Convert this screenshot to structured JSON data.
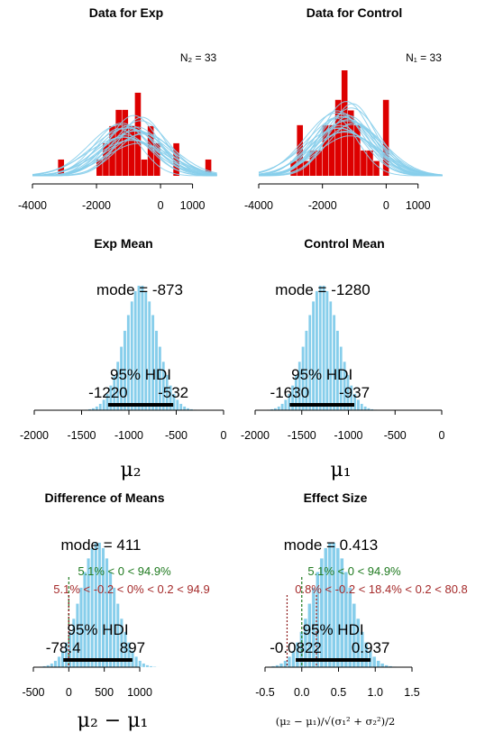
{
  "colors": {
    "bar_red": "#dd0000",
    "hist_blue": "#87ceeb",
    "green_text": "#1f7a1f",
    "red_text": "#a52a2a"
  },
  "chart_data": [
    {
      "id": "exp_data",
      "type": "bar",
      "title": "Data for Exp",
      "note": "N₂ = 33",
      "xlim": [
        -4000,
        1800
      ],
      "ylim": [
        0,
        1
      ],
      "xticks": [
        -4000,
        -2000,
        0,
        1000
      ],
      "xtick_labels": [
        "-4000",
        "-2000",
        "0",
        "1000"
      ],
      "values": [
        {
          "x0": -3200,
          "x1": -3000,
          "h": 0.19
        },
        {
          "x0": -2000,
          "x1": -1800,
          "h": 0.19
        },
        {
          "x0": -1800,
          "x1": -1600,
          "h": 0.38
        },
        {
          "x0": -1600,
          "x1": -1400,
          "h": 0.58
        },
        {
          "x0": -1400,
          "x1": -1200,
          "h": 0.77
        },
        {
          "x0": -1200,
          "x1": -1000,
          "h": 0.77
        },
        {
          "x0": -1000,
          "x1": -800,
          "h": 0.58
        },
        {
          "x0": -800,
          "x1": -600,
          "h": 0.97
        },
        {
          "x0": -600,
          "x1": -400,
          "h": 0.19
        },
        {
          "x0": -400,
          "x1": -200,
          "h": 0.58
        },
        {
          "x0": -200,
          "x1": 0,
          "h": 0.38
        },
        {
          "x0": 400,
          "x1": 600,
          "h": 0.38
        },
        {
          "x0": 1400,
          "x1": 1600,
          "h": 0.19
        }
      ],
      "curves": {
        "mean_range": [
          -1300,
          -500
        ],
        "sd_range": [
          700,
          1100
        ],
        "count": 20
      }
    },
    {
      "id": "control_data",
      "type": "bar",
      "title": "Data for Control",
      "note": "N₁ = 33",
      "xlim": [
        -4000,
        1800
      ],
      "ylim": [
        0,
        1
      ],
      "xticks": [
        -4000,
        -2000,
        0,
        1000
      ],
      "xtick_labels": [
        "-4000",
        "-2000",
        "0",
        "1000"
      ],
      "values": [
        {
          "x0": -3000,
          "x1": -2800,
          "h": 0.14
        },
        {
          "x0": -2800,
          "x1": -2600,
          "h": 0.48
        },
        {
          "x0": -2600,
          "x1": -2400,
          "h": 0.14
        },
        {
          "x0": -2400,
          "x1": -2200,
          "h": 0.24
        },
        {
          "x0": -2200,
          "x1": -2000,
          "h": 0.24
        },
        {
          "x0": -2000,
          "x1": -1800,
          "h": 0.48
        },
        {
          "x0": -1800,
          "x1": -1600,
          "h": 0.48
        },
        {
          "x0": -1600,
          "x1": -1400,
          "h": 0.72
        },
        {
          "x0": -1400,
          "x1": -1200,
          "h": 1.0
        },
        {
          "x0": -1200,
          "x1": -1000,
          "h": 0.62
        },
        {
          "x0": -1000,
          "x1": -800,
          "h": 0.48
        },
        {
          "x0": -800,
          "x1": -600,
          "h": 0.24
        },
        {
          "x0": -600,
          "x1": -400,
          "h": 0.24
        },
        {
          "x0": -400,
          "x1": -200,
          "h": 0.14
        },
        {
          "x0": -100,
          "x1": 100,
          "h": 0.72
        }
      ],
      "curves": {
        "mean_range": [
          -1600,
          -1000
        ],
        "sd_range": [
          700,
          1100
        ],
        "count": 20
      }
    },
    {
      "id": "exp_mean",
      "type": "bar",
      "title": "Exp Mean",
      "xlim": [
        -2000,
        0
      ],
      "xticks": [
        -2000,
        -1500,
        -1000,
        -500,
        0
      ],
      "xtick_labels": [
        "-2000",
        "-1500",
        "-1000",
        "-500",
        "0"
      ],
      "xlabel": "μ₂",
      "posterior": {
        "center": -873,
        "sd": 175
      },
      "mode_label": "mode = -873",
      "hdi_label": "95% HDI",
      "hdi": [
        -1220,
        -532
      ],
      "hdi_labels": [
        "-1220",
        "-532"
      ]
    },
    {
      "id": "control_mean",
      "type": "bar",
      "title": "Control Mean",
      "xlim": [
        -2000,
        0
      ],
      "xticks": [
        -2000,
        -1500,
        -1000,
        -500,
        0
      ],
      "xtick_labels": [
        "-2000",
        "-1500",
        "-1000",
        "-500",
        "0"
      ],
      "xlabel": "μ₁",
      "posterior": {
        "center": -1280,
        "sd": 175
      },
      "mode_label": "mode = -1280",
      "hdi_label": "95% HDI",
      "hdi": [
        -1630,
        -937
      ],
      "hdi_labels": [
        "-1630",
        "-937"
      ]
    },
    {
      "id": "diff_means",
      "type": "bar",
      "title": "Difference of Means",
      "xlim": [
        -500,
        1400
      ],
      "xticks": [
        -500,
        0,
        500,
        1000
      ],
      "xtick_labels": [
        "-500",
        "0",
        "500",
        "1000"
      ],
      "xlabel": "μ₂ − μ₁",
      "posterior": {
        "center": 411,
        "sd": 245
      },
      "mode_label": "mode = 411",
      "comp_label": "5.1% < 0 < 94.9%",
      "rope_label": "5.1% < -0.2 < 0% < 0.2 < 94.9",
      "comp_value": 0,
      "rope": [
        -0.2,
        0.2
      ],
      "hdi_label": "95% HDI",
      "hdi": [
        -78.4,
        897
      ],
      "hdi_labels": [
        "-78.4",
        "897"
      ]
    },
    {
      "id": "effect_size",
      "type": "bar",
      "title": "Effect Size",
      "xlim": [
        -0.5,
        1.5
      ],
      "xticks": [
        -0.5,
        0,
        0.5,
        1,
        1.5
      ],
      "xtick_labels": [
        "-0.5",
        "0.0",
        "0.5",
        "1.0",
        "1.5"
      ],
      "xlabel": "(μ₂ − μ₁)/√(σ₁² + σ₂²)/2",
      "posterior": {
        "center": 0.413,
        "sd": 0.26
      },
      "mode_label": "mode = 0.413",
      "comp_label": "5.1% < 0 < 94.9%",
      "rope_label": "0.8% < -0.2 < 18.4% < 0.2 < 80.8",
      "comp_value": 0,
      "rope": [
        -0.2,
        0.2
      ],
      "hdi_label": "95% HDI",
      "hdi": [
        -0.0822,
        0.937
      ],
      "hdi_labels": [
        "-0.0822",
        "0.937"
      ]
    }
  ]
}
